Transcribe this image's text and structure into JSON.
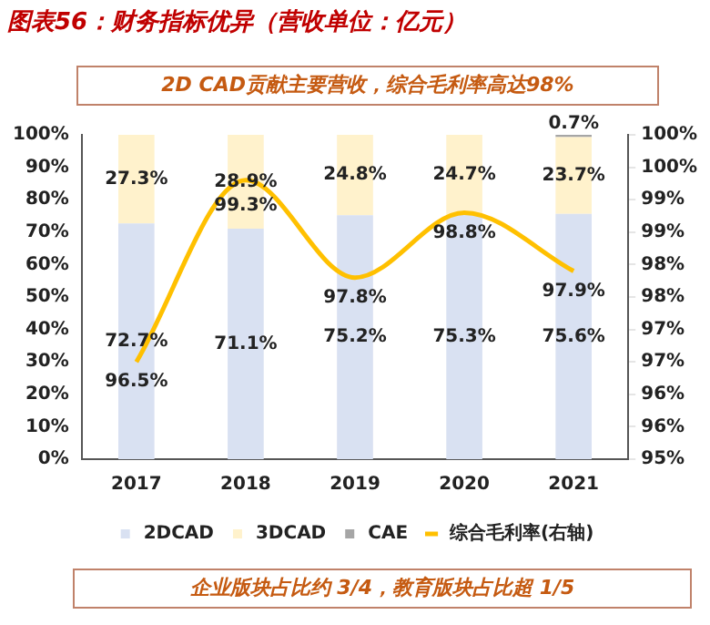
{
  "chart_data": {
    "type": "bar",
    "stacked": true,
    "title": "图表56：财务指标优异（营收单位：亿元）",
    "subtitle": "2D CAD贡献主要营收，综合毛利率高达98%",
    "annotations": [
      "企业版块占比约 3/4，教育版块占比超 1/5"
    ],
    "categories": [
      "2017",
      "2018",
      "2019",
      "2020",
      "2021"
    ],
    "series": [
      {
        "name": "2DCAD",
        "color": "#d9e1f2",
        "values": [
          72.7,
          71.1,
          75.2,
          75.3,
          75.6
        ],
        "value_labels": [
          "72.7%",
          "71.1%",
          "75.2%",
          "75.3%",
          "75.6%"
        ]
      },
      {
        "name": "3DCAD",
        "color": "#fff2cc",
        "values": [
          27.3,
          28.9,
          24.8,
          24.7,
          23.7
        ],
        "value_labels": [
          "27.3%",
          "28.9%",
          "24.8%",
          "24.7%",
          "23.7%"
        ]
      },
      {
        "name": "CAE",
        "color": "#a6a6a6",
        "values": [
          null,
          null,
          null,
          null,
          0.7
        ],
        "value_labels": [
          null,
          null,
          null,
          null,
          "0.7%"
        ]
      },
      {
        "name": "综合毛利率(右轴)",
        "type": "line",
        "axis": "y2",
        "color": "#ffc000",
        "values": [
          96.5,
          99.3,
          97.8,
          98.8,
          97.9
        ],
        "value_labels": [
          "96.5%",
          "99.3%",
          "97.8%",
          "98.8%",
          "97.9%"
        ]
      }
    ],
    "ylim": [
      0,
      100
    ],
    "yticks": [
      {
        "value": 0,
        "label": "0%"
      },
      {
        "value": 10,
        "label": "10%"
      },
      {
        "value": 20,
        "label": "20%"
      },
      {
        "value": 30,
        "label": "30%"
      },
      {
        "value": 40,
        "label": "40%"
      },
      {
        "value": 50,
        "label": "50%"
      },
      {
        "value": 60,
        "label": "60%"
      },
      {
        "value": 70,
        "label": "70%"
      },
      {
        "value": 80,
        "label": "80%"
      },
      {
        "value": 90,
        "label": "90%"
      },
      {
        "value": 100,
        "label": "100%"
      }
    ],
    "y2lim": [
      95,
      100
    ],
    "y2ticks": [
      {
        "value": 95,
        "label": "95%"
      },
      {
        "value": 95.5,
        "label": "96%"
      },
      {
        "value": 96,
        "label": "96%"
      },
      {
        "value": 96.5,
        "label": "97%"
      },
      {
        "value": 97,
        "label": "97%"
      },
      {
        "value": 97.5,
        "label": "98%"
      },
      {
        "value": 98,
        "label": "98%"
      },
      {
        "value": 98.5,
        "label": "99%"
      },
      {
        "value": 99,
        "label": "99%"
      },
      {
        "value": 99.5,
        "label": "100%"
      },
      {
        "value": 100,
        "label": "100%"
      }
    ],
    "grid": false,
    "legend": "bottom",
    "marker": "none",
    "line_style": "solid"
  }
}
